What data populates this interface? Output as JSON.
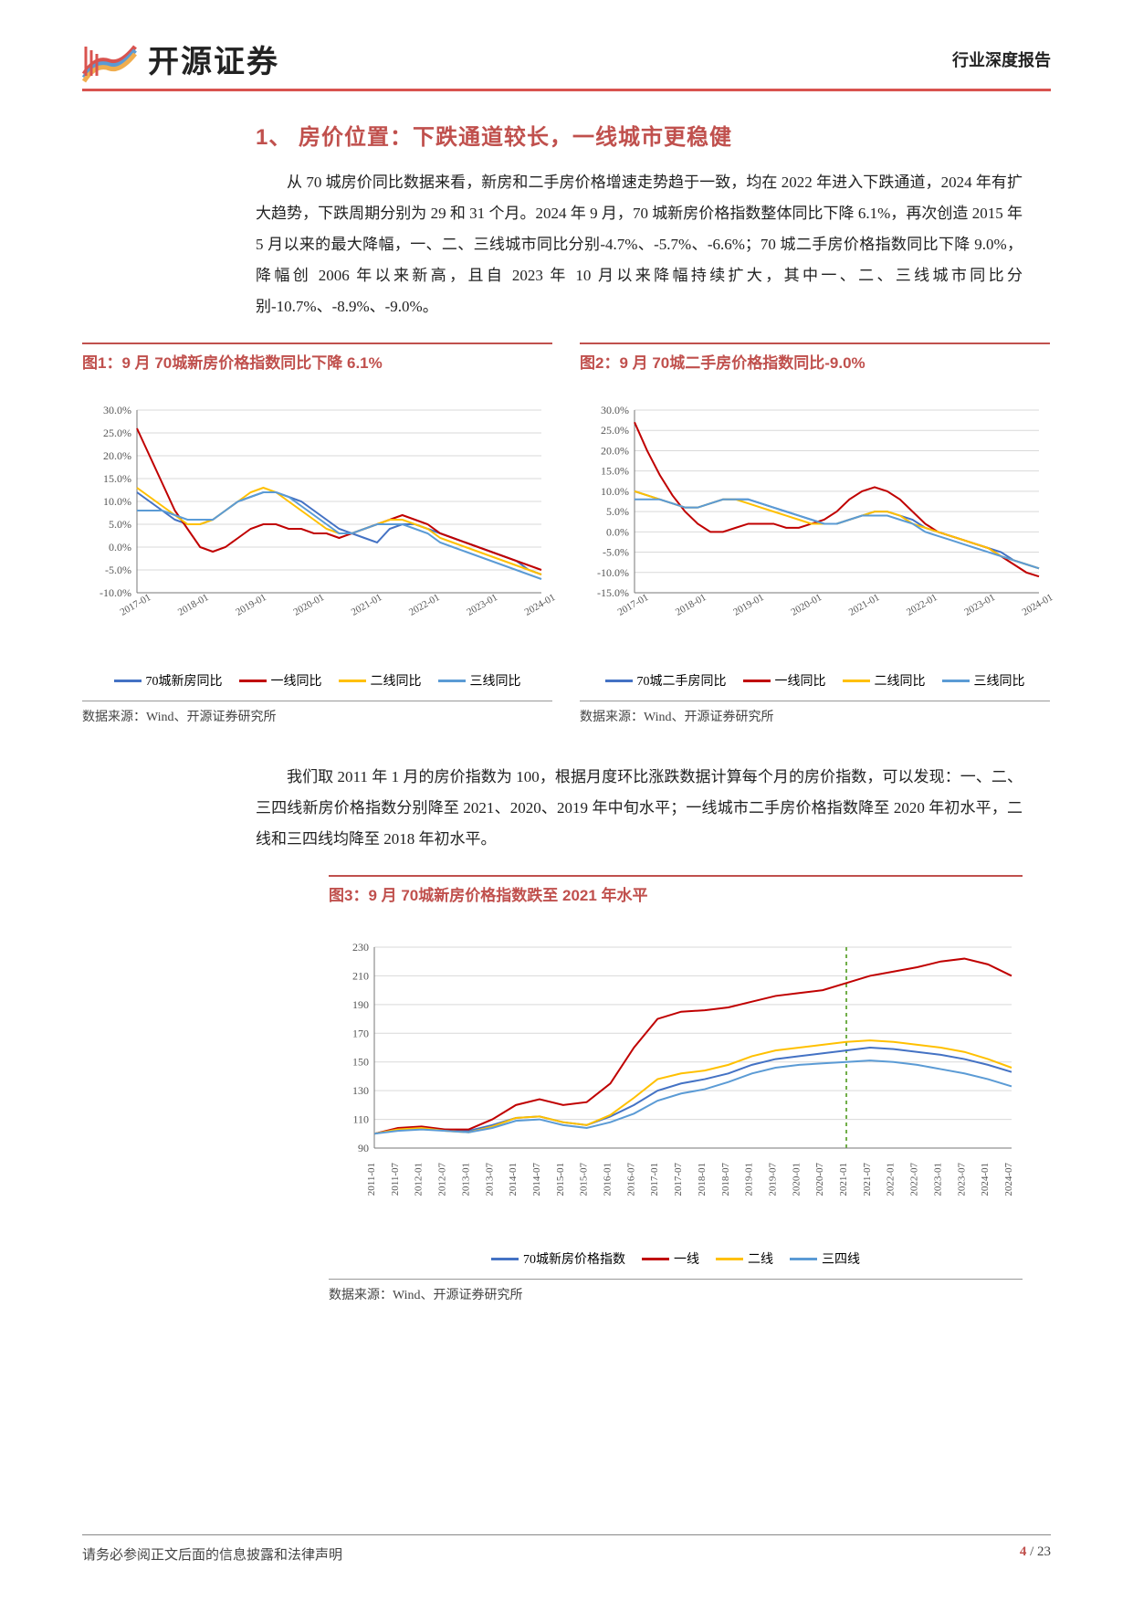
{
  "header": {
    "company": "开源证券",
    "doc_type": "行业深度报告",
    "logo_colors": [
      "#d9534f",
      "#5b9bd5",
      "#f0ad4e"
    ]
  },
  "section1_title": "1、 房价位置：下跌通道较长，一线城市更稳健",
  "para1": "从 70 城房价同比数据来看，新房和二手房价格增速走势趋于一致，均在 2022 年进入下跌通道，2024 年有扩大趋势，下跌周期分别为 29 和 31 个月。2024 年 9 月，70 城新房价格指数整体同比下降 6.1%，再次创造 2015 年 5 月以来的最大降幅，一、二、三线城市同比分别-4.7%、-5.7%、-6.6%；70 城二手房价格指数同比下降 9.0%，降幅创 2006 年以来新高，且自 2023 年 10 月以来降幅持续扩大，其中一、二、三线城市同比分别-10.7%、-8.9%、-9.0%。",
  "chart1": {
    "type": "line",
    "title": "图1：9 月 70城新房价格指数同比下降 6.1%",
    "source": "数据来源：Wind、开源证券研究所",
    "ylim": [
      -10,
      30
    ],
    "ytick_step": 5,
    "y_suffix": "%",
    "x_labels": [
      "2017-01",
      "2018-01",
      "2019-01",
      "2020-01",
      "2021-01",
      "2022-01",
      "2023-01",
      "2024-01"
    ],
    "background_color": "#ffffff",
    "grid_color": "#d9d9d9",
    "axis_color": "#777",
    "series": [
      {
        "name": "70城新房同比",
        "color": "#4472c4",
        "width": 2,
        "values": [
          12,
          10,
          8,
          6,
          5,
          5,
          6,
          8,
          10,
          11,
          12,
          12,
          11,
          10,
          8,
          6,
          4,
          3,
          2,
          1,
          4,
          5,
          5,
          4,
          3,
          2,
          1,
          0,
          -1,
          -2,
          -3,
          -5,
          -6
        ]
      },
      {
        "name": "一线同比",
        "color": "#c00000",
        "width": 2,
        "values": [
          26,
          20,
          14,
          8,
          4,
          0,
          -1,
          0,
          2,
          4,
          5,
          5,
          4,
          4,
          3,
          3,
          2,
          3,
          4,
          5,
          6,
          7,
          6,
          5,
          3,
          2,
          1,
          0,
          -1,
          -2,
          -3,
          -4,
          -5
        ]
      },
      {
        "name": "二线同比",
        "color": "#ffc000",
        "width": 2,
        "values": [
          13,
          11,
          9,
          7,
          5,
          5,
          6,
          8,
          10,
          12,
          13,
          12,
          10,
          8,
          6,
          4,
          3,
          3,
          4,
          5,
          6,
          6,
          5,
          4,
          2,
          1,
          0,
          -1,
          -2,
          -3,
          -4,
          -5,
          -6
        ]
      },
      {
        "name": "三线同比",
        "color": "#5b9bd5",
        "width": 2,
        "values": [
          8,
          8,
          8,
          7,
          6,
          6,
          6,
          8,
          10,
          11,
          12,
          12,
          11,
          9,
          7,
          5,
          3,
          3,
          4,
          5,
          5,
          5,
          4,
          3,
          1,
          0,
          -1,
          -2,
          -3,
          -4,
          -5,
          -6,
          -7
        ]
      }
    ]
  },
  "chart2": {
    "type": "line",
    "title": "图2：9 月 70城二手房价格指数同比-9.0%",
    "source": "数据来源：Wind、开源证券研究所",
    "ylim": [
      -15,
      30
    ],
    "ytick_step": 5,
    "y_suffix": "%",
    "x_labels": [
      "2017-01",
      "2018-01",
      "2019-01",
      "2020-01",
      "2021-01",
      "2022-01",
      "2023-01",
      "2024-01"
    ],
    "background_color": "#ffffff",
    "grid_color": "#d9d9d9",
    "axis_color": "#777",
    "series": [
      {
        "name": "70城二手房同比",
        "color": "#4472c4",
        "width": 2,
        "values": [
          10,
          9,
          8,
          7,
          6,
          6,
          7,
          8,
          8,
          8,
          7,
          6,
          5,
          4,
          3,
          2,
          2,
          3,
          4,
          5,
          5,
          4,
          3,
          1,
          0,
          -1,
          -2,
          -3,
          -4,
          -5,
          -7,
          -8,
          -9
        ]
      },
      {
        "name": "一线同比",
        "color": "#c00000",
        "width": 2,
        "values": [
          27,
          20,
          14,
          9,
          5,
          2,
          0,
          0,
          1,
          2,
          2,
          2,
          1,
          1,
          2,
          3,
          5,
          8,
          10,
          11,
          10,
          8,
          5,
          2,
          0,
          -1,
          -2,
          -3,
          -4,
          -6,
          -8,
          -10,
          -11
        ]
      },
      {
        "name": "二线同比",
        "color": "#ffc000",
        "width": 2,
        "values": [
          10,
          9,
          8,
          7,
          6,
          6,
          7,
          8,
          8,
          7,
          6,
          5,
          4,
          3,
          2,
          2,
          2,
          3,
          4,
          5,
          5,
          4,
          2,
          1,
          0,
          -1,
          -2,
          -3,
          -4,
          -6,
          -7,
          -8,
          -9
        ]
      },
      {
        "name": "三线同比",
        "color": "#5b9bd5",
        "width": 2,
        "values": [
          8,
          8,
          8,
          7,
          6,
          6,
          7,
          8,
          8,
          8,
          7,
          6,
          5,
          4,
          3,
          2,
          2,
          3,
          4,
          4,
          4,
          3,
          2,
          0,
          -1,
          -2,
          -3,
          -4,
          -5,
          -6,
          -7,
          -8,
          -9
        ]
      }
    ]
  },
  "para2": "我们取 2011 年 1 月的房价指数为 100，根据月度环比涨跌数据计算每个月的房价指数，可以发现：一、二、三四线新房价格指数分别降至 2021、2020、2019 年中旬水平；一线城市二手房价格指数降至 2020 年初水平，二线和三四线均降至 2018 年初水平。",
  "chart3": {
    "type": "line",
    "title": "图3：9 月 70城新房价格指数跌至 2021 年水平",
    "source": "数据来源：Wind、开源证券研究所",
    "ylim": [
      90,
      230
    ],
    "ytick_step": 20,
    "y_suffix": "",
    "x_labels": [
      "2011-01",
      "2011-07",
      "2012-01",
      "2012-07",
      "2013-01",
      "2013-07",
      "2014-01",
      "2014-07",
      "2015-01",
      "2015-07",
      "2016-01",
      "2016-07",
      "2017-01",
      "2017-07",
      "2018-01",
      "2018-07",
      "2019-01",
      "2019-07",
      "2020-01",
      "2020-07",
      "2021-01",
      "2021-07",
      "2022-01",
      "2022-07",
      "2023-01",
      "2023-07",
      "2024-01",
      "2024-07"
    ],
    "background_color": "#ffffff",
    "grid_color": "#d9d9d9",
    "axis_color": "#777",
    "vline_at": "2021-01",
    "vline_color": "#70ad47",
    "vline_dash": "4,4",
    "series": [
      {
        "name": "70城新房价格指数",
        "color": "#4472c4",
        "width": 2,
        "values": [
          100,
          103,
          104,
          103,
          102,
          106,
          111,
          112,
          108,
          106,
          112,
          120,
          130,
          135,
          138,
          142,
          148,
          152,
          154,
          156,
          158,
          160,
          159,
          157,
          155,
          152,
          148,
          143
        ]
      },
      {
        "name": "一线",
        "color": "#c00000",
        "width": 2,
        "values": [
          100,
          104,
          105,
          103,
          103,
          110,
          120,
          124,
          120,
          122,
          135,
          160,
          180,
          185,
          186,
          188,
          192,
          196,
          198,
          200,
          205,
          210,
          213,
          216,
          220,
          222,
          218,
          210
        ]
      },
      {
        "name": "二线",
        "color": "#ffc000",
        "width": 2,
        "values": [
          100,
          103,
          104,
          102,
          101,
          105,
          111,
          112,
          108,
          106,
          113,
          125,
          138,
          142,
          144,
          148,
          154,
          158,
          160,
          162,
          164,
          165,
          164,
          162,
          160,
          157,
          152,
          146
        ]
      },
      {
        "name": "三四线",
        "color": "#5b9bd5",
        "width": 2,
        "values": [
          100,
          102,
          103,
          102,
          101,
          104,
          109,
          110,
          106,
          104,
          108,
          114,
          123,
          128,
          131,
          136,
          142,
          146,
          148,
          149,
          150,
          151,
          150,
          148,
          145,
          142,
          138,
          133
        ]
      }
    ]
  },
  "footer": {
    "disclaimer": "请务必参阅正文后面的信息披露和法律声明",
    "page_current": "4",
    "page_total": "23"
  }
}
